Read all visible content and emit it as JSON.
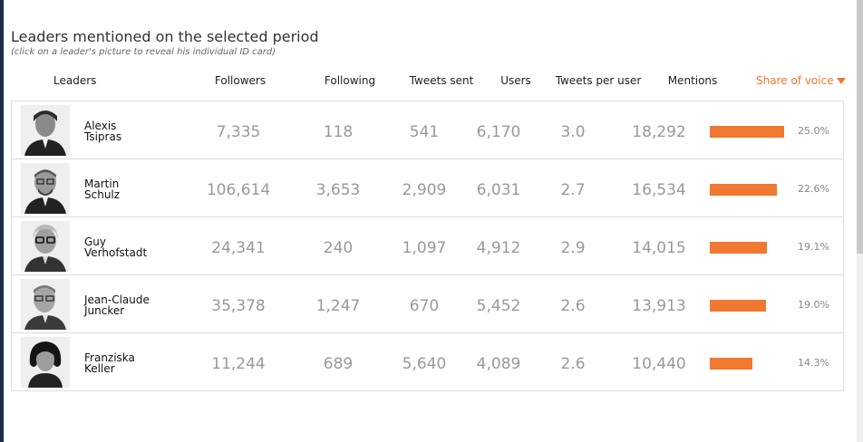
{
  "title": "Leaders mentioned on the selected period",
  "subtitle": "(click on a leader's picture to reveal his individual ID card)",
  "columns": {
    "leaders": "Leaders",
    "followers": "Followers",
    "following": "Following",
    "tweets_sent": "Tweets sent",
    "users": "Users",
    "tweets_per_user": "Tweets per user",
    "mentions": "Mentions",
    "share_of_voice": "Share of voice"
  },
  "accent_color": "#f07830",
  "rows": [
    {
      "first": "Alexis",
      "last": "Tsipras",
      "followers": "7,335",
      "following": "118",
      "tweets_sent": "541",
      "users": "6,170",
      "tweets_per_user": "3.0",
      "mentions": "18,292",
      "share": "25.0%",
      "share_value": 25.0
    },
    {
      "first": "Martin",
      "last": "Schulz",
      "followers": "106,614",
      "following": "3,653",
      "tweets_sent": "2,909",
      "users": "6,031",
      "tweets_per_user": "2.7",
      "mentions": "16,534",
      "share": "22.6%",
      "share_value": 22.6
    },
    {
      "first": "Guy",
      "last": "Verhofstadt",
      "followers": "24,341",
      "following": "240",
      "tweets_sent": "1,097",
      "users": "4,912",
      "tweets_per_user": "2.9",
      "mentions": "14,015",
      "share": "19.1%",
      "share_value": 19.1
    },
    {
      "first": "Jean-Claude",
      "last": "Juncker",
      "followers": "35,378",
      "following": "1,247",
      "tweets_sent": "670",
      "users": "5,452",
      "tweets_per_user": "2.6",
      "mentions": "13,913",
      "share": "19.0%",
      "share_value": 19.0
    },
    {
      "first": "Franziska",
      "last": "Keller",
      "followers": "11,244",
      "following": "689",
      "tweets_sent": "5,640",
      "users": "4,089",
      "tweets_per_user": "2.6",
      "mentions": "10,440",
      "share": "14.3%",
      "share_value": 14.3
    }
  ]
}
